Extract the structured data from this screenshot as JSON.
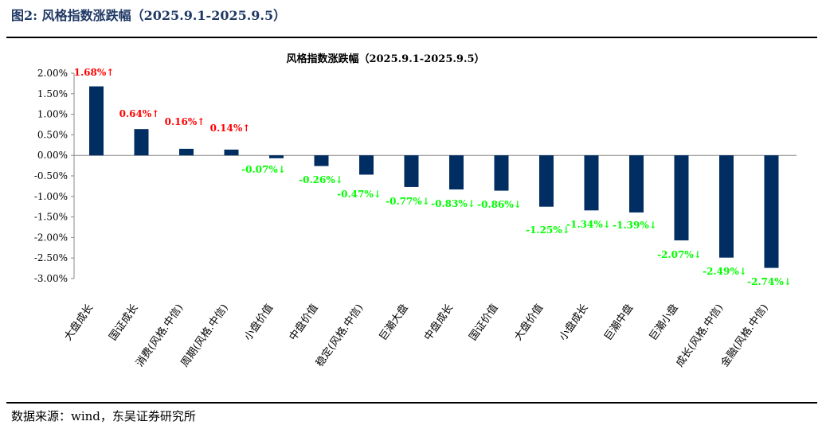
{
  "figure_title": "图2:  风格指数涨跌幅（2025.9.1-2025.9.5）",
  "source": "数据来源：wind，东吴证券研究所",
  "colors": {
    "bar": "#002d62",
    "up": "#ff0000",
    "down": "#00ff00"
  },
  "chart_data": {
    "type": "bar",
    "title": "风格指数涨跌幅（2025.9.1-2025.9.5）",
    "xlabel": "",
    "ylabel": "",
    "ylim": [
      -3,
      2
    ],
    "yticks": [
      "2.00%",
      "1.50%",
      "1.00%",
      "0.50%",
      "0.00%",
      "-0.50%",
      "-1.00%",
      "-1.50%",
      "-2.00%",
      "-2.50%",
      "-3.00%"
    ],
    "categories": [
      "大盘成长",
      "国证成长",
      "消费(风格.中信)",
      "周期(风格.中信)",
      "小盘价值",
      "中盘价值",
      "稳定(风格.中信)",
      "巨潮大盘",
      "中盘成长",
      "国证价值",
      "大盘价值",
      "小盘成长",
      "巨潮中盘",
      "巨潮小盘",
      "成长(风格.中信)",
      "金融(风格.中信)"
    ],
    "values": [
      1.68,
      0.64,
      0.16,
      0.14,
      -0.07,
      -0.26,
      -0.47,
      -0.77,
      -0.83,
      -0.86,
      -1.25,
      -1.34,
      -1.39,
      -2.07,
      -2.49,
      -2.74
    ],
    "data_labels": [
      "1.68%↑",
      "0.64%↑",
      "0.16%↑",
      "0.14%↑",
      "-0.07%↓",
      "-0.26%↓",
      "-0.47%↓",
      "-0.77%↓",
      "-0.83%↓",
      "-0.86%↓",
      "-1.25%↓",
      "-1.34%↓",
      "-1.39%↓",
      "-2.07%↓",
      "-2.49%↓",
      "-2.74%↓"
    ]
  }
}
